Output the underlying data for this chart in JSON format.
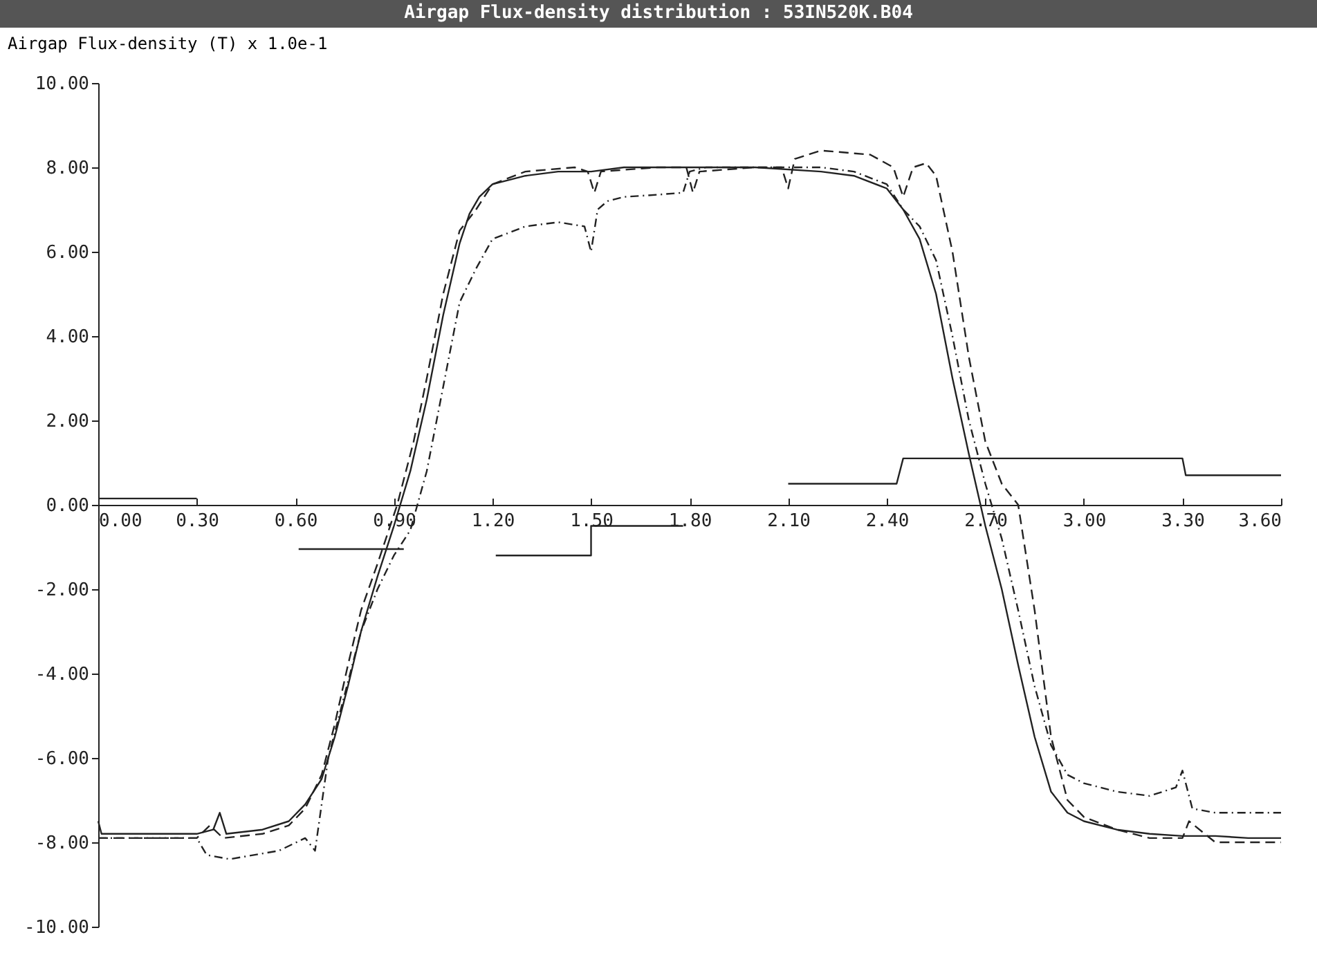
{
  "chart_data": {
    "type": "line",
    "title": "Airgap Flux-density distribution : 53IN520K.B04",
    "ylabel": "Airgap Flux-density (T) x 1.0e-1",
    "xlim": [
      0,
      3.6
    ],
    "ylim": [
      -10,
      10
    ],
    "xticks": [
      {
        "value": 0,
        "label": "0.00"
      },
      {
        "value": 0.3,
        "label": "0.30"
      },
      {
        "value": 0.6,
        "label": "0.60"
      },
      {
        "value": 0.9,
        "label": "0.90"
      },
      {
        "value": 1.2,
        "label": "1.20"
      },
      {
        "value": 1.5,
        "label": "1.50"
      },
      {
        "value": 1.8,
        "label": "1.80"
      },
      {
        "value": 2.1,
        "label": "2.10"
      },
      {
        "value": 2.4,
        "label": "2.40"
      },
      {
        "value": 2.7,
        "label": "2.70"
      },
      {
        "value": 3.0,
        "label": "3.00"
      },
      {
        "value": 3.3,
        "label": "3.30"
      },
      {
        "value": 3.6,
        "label": "3.60"
      }
    ],
    "yticks": [
      {
        "value": 10,
        "label": "10.00"
      },
      {
        "value": 8,
        "label": "8.00"
      },
      {
        "value": 6,
        "label": "6.00"
      },
      {
        "value": 4,
        "label": "4.00"
      },
      {
        "value": 2,
        "label": "2.00"
      },
      {
        "value": 0,
        "label": "0.00"
      },
      {
        "value": -2,
        "label": "-2.00"
      },
      {
        "value": -4,
        "label": "-4.00"
      },
      {
        "value": -6,
        "label": "-6.00"
      },
      {
        "value": -8,
        "label": "-8.00"
      },
      {
        "value": -10,
        "label": "-10.00"
      }
    ],
    "series": [
      {
        "color": "#222222",
        "line_style": "solid",
        "x": [
          0,
          0.01,
          0.1,
          0.3,
          0.35,
          0.37,
          0.39,
          0.5,
          0.58,
          0.63,
          0.68,
          0.72,
          0.76,
          0.8,
          0.85,
          0.9,
          0.95,
          1.0,
          1.05,
          1.1,
          1.13,
          1.16,
          1.2,
          1.3,
          1.4,
          1.5,
          1.6,
          1.8,
          2.0,
          2.2,
          2.3,
          2.4,
          2.45,
          2.5,
          2.55,
          2.6,
          2.65,
          2.7,
          2.75,
          2.8,
          2.85,
          2.9,
          2.95,
          3.0,
          3.1,
          3.2,
          3.3,
          3.4,
          3.5,
          3.6
        ],
        "values": [
          -7.5,
          -7.8,
          -7.8,
          -7.8,
          -7.7,
          -7.3,
          -7.8,
          -7.7,
          -7.5,
          -7.1,
          -6.5,
          -5.5,
          -4.3,
          -3.0,
          -1.7,
          -0.5,
          0.8,
          2.5,
          4.5,
          6.2,
          6.9,
          7.3,
          7.6,
          7.8,
          7.9,
          7.9,
          8.0,
          8.0,
          8.0,
          7.9,
          7.8,
          7.5,
          7.0,
          6.3,
          5.0,
          3.0,
          1.2,
          -0.5,
          -2.0,
          -3.8,
          -5.5,
          -6.8,
          -7.3,
          -7.5,
          -7.7,
          -7.8,
          -7.85,
          -7.85,
          -7.9,
          -7.9
        ]
      },
      {
        "color": "#222222",
        "line_style": "dashed",
        "x": [
          0,
          0.1,
          0.3,
          0.34,
          0.38,
          0.5,
          0.58,
          0.63,
          0.68,
          0.72,
          0.76,
          0.8,
          0.85,
          0.91,
          0.96,
          1.0,
          1.05,
          1.1,
          1.15,
          1.2,
          1.3,
          1.45,
          1.49,
          1.51,
          1.53,
          1.7,
          1.79,
          1.81,
          1.83,
          2.0,
          2.08,
          2.1,
          2.12,
          2.2,
          2.35,
          2.42,
          2.45,
          2.48,
          2.52,
          2.55,
          2.6,
          2.65,
          2.7,
          2.75,
          2.8,
          2.85,
          2.9,
          2.95,
          3.0,
          3.1,
          3.2,
          3.3,
          3.32,
          3.4,
          3.5,
          3.6
        ],
        "values": [
          -7.9,
          -7.9,
          -7.9,
          -7.6,
          -7.9,
          -7.8,
          -7.6,
          -7.2,
          -6.4,
          -5.2,
          -3.8,
          -2.5,
          -1.4,
          0,
          1.5,
          3.0,
          5.0,
          6.5,
          7.0,
          7.6,
          7.9,
          8.0,
          7.9,
          7.4,
          7.9,
          8.0,
          8.0,
          7.4,
          7.9,
          8.0,
          8.0,
          7.5,
          8.2,
          8.4,
          8.3,
          8.0,
          7.3,
          8.0,
          8.1,
          7.8,
          6.0,
          3.5,
          1.5,
          0.5,
          0,
          -2.5,
          -5.5,
          -7.0,
          -7.4,
          -7.7,
          -7.9,
          -7.9,
          -7.5,
          -8.0,
          -8.0,
          -8.0
        ]
      },
      {
        "color": "#222222",
        "line_style": "dotted",
        "x": [
          0,
          0.3,
          0.33,
          0.4,
          0.55,
          0.63,
          0.66,
          0.7,
          0.75,
          0.8,
          0.85,
          0.9,
          0.95,
          1.0,
          1.05,
          1.1,
          1.15,
          1.2,
          1.3,
          1.4,
          1.48,
          1.5,
          1.52,
          1.55,
          1.6,
          1.7,
          1.78,
          1.8,
          1.85,
          2.0,
          2.2,
          2.3,
          2.4,
          2.45,
          2.5,
          2.55,
          2.6,
          2.65,
          2.7,
          2.75,
          2.8,
          2.85,
          2.9,
          2.95,
          3.0,
          3.1,
          3.2,
          3.28,
          3.3,
          3.33,
          3.4,
          3.5,
          3.6
        ],
        "values": [
          -7.9,
          -7.9,
          -8.3,
          -8.4,
          -8.2,
          -7.9,
          -8.2,
          -6.0,
          -4.5,
          -3.0,
          -2.0,
          -1.2,
          -0.6,
          0.8,
          2.8,
          4.8,
          5.6,
          6.3,
          6.6,
          6.7,
          6.6,
          6.0,
          7.0,
          7.2,
          7.3,
          7.35,
          7.4,
          7.9,
          8.0,
          8.0,
          8.0,
          7.9,
          7.6,
          7.0,
          6.6,
          5.8,
          4.0,
          2.0,
          0.5,
          -0.8,
          -2.5,
          -4.3,
          -5.7,
          -6.4,
          -6.6,
          -6.8,
          -6.9,
          -6.7,
          -6.3,
          -7.2,
          -7.3,
          -7.3,
          -7.3
        ]
      },
      {
        "color": "#222222",
        "line_style": "solid",
        "x": [
          0,
          0.3,
          0.45,
          0.61,
          0.93,
          1.05,
          1.21,
          1.5,
          1.5,
          1.78,
          1.95,
          2.1,
          2.43,
          2.45,
          3.3,
          3.31,
          3.6
        ],
        "values": [
          0.15,
          0.15,
          null,
          -1.05,
          -1.05,
          null,
          -1.2,
          -1.2,
          -0.5,
          -0.5,
          null,
          0.5,
          0.5,
          1.1,
          1.1,
          0.7,
          0.7
        ]
      }
    ]
  }
}
